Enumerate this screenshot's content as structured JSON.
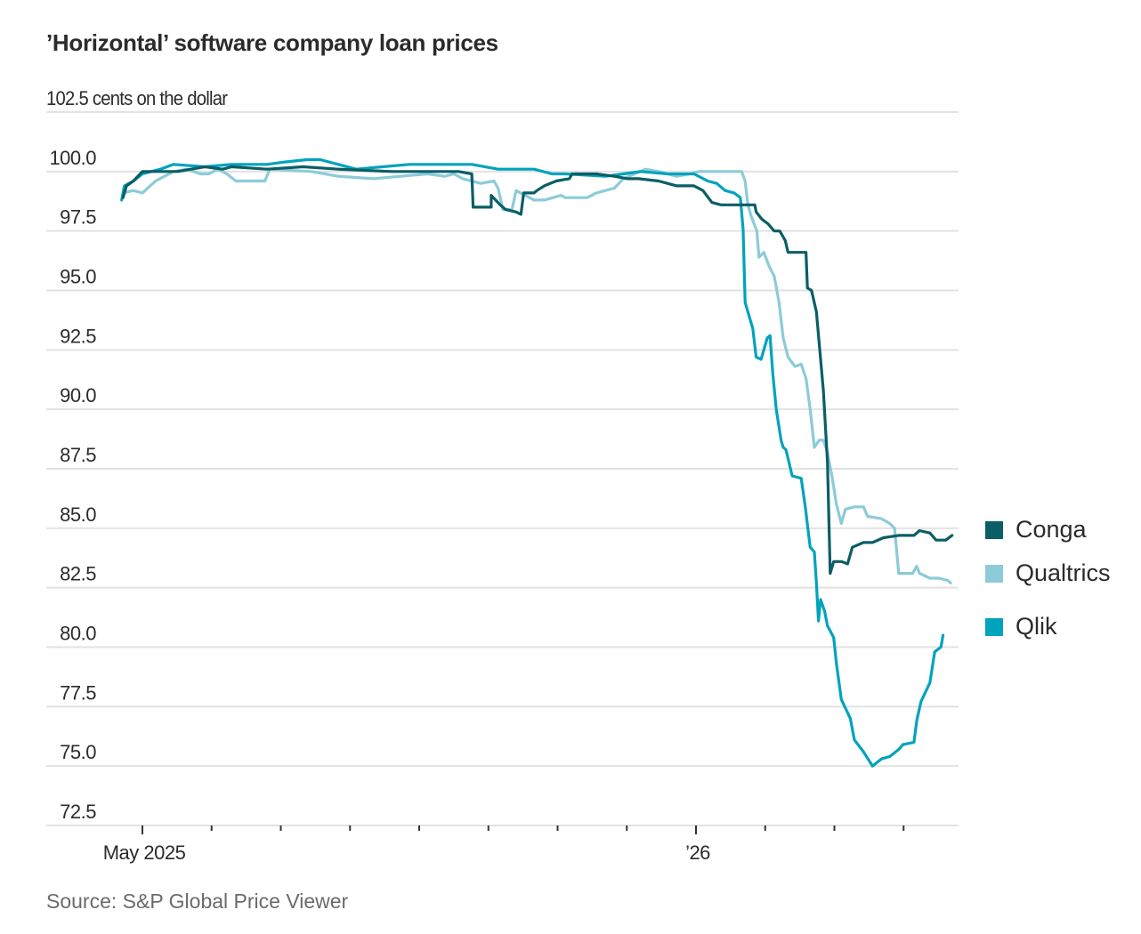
{
  "chart_data": {
    "type": "line",
    "title": "’Horizontal’ software company loan prices",
    "ylabel": "cents on the dollar",
    "xlabel": "",
    "source": "Source: S&P Global Price Viewer",
    "ylim": [
      72.5,
      102.5
    ],
    "y_ticks": [
      {
        "value": 102.5,
        "label": "102.5"
      },
      {
        "value": 100.0,
        "label": "100.0"
      },
      {
        "value": 97.5,
        "label": "97.5"
      },
      {
        "value": 95.0,
        "label": "95.0"
      },
      {
        "value": 92.5,
        "label": "92.5"
      },
      {
        "value": 90.0,
        "label": "90.0"
      },
      {
        "value": 87.5,
        "label": "87.5"
      },
      {
        "value": 85.0,
        "label": "85.0"
      },
      {
        "value": 82.5,
        "label": "82.5"
      },
      {
        "value": 80.0,
        "label": "80.0"
      },
      {
        "value": 77.5,
        "label": "77.5"
      },
      {
        "value": 75.0,
        "label": "75.0"
      },
      {
        "value": 72.5,
        "label": "72.5"
      }
    ],
    "x_unit": "months since May 1, 2025",
    "xlim": [
      -0.3,
      11.93
    ],
    "x_ticks": [
      {
        "value": 0,
        "label": "May 2025",
        "major": true
      },
      {
        "value": 1,
        "label": "",
        "major": false
      },
      {
        "value": 2,
        "label": "",
        "major": false
      },
      {
        "value": 3,
        "label": "",
        "major": false
      },
      {
        "value": 4,
        "label": "",
        "major": false
      },
      {
        "value": 5,
        "label": "",
        "major": false
      },
      {
        "value": 6,
        "label": "",
        "major": false
      },
      {
        "value": 7,
        "label": "",
        "major": false
      },
      {
        "value": 8,
        "label": "’26",
        "major": true
      },
      {
        "value": 9,
        "label": "",
        "major": false
      },
      {
        "value": 10,
        "label": "",
        "major": false
      },
      {
        "value": 11,
        "label": "",
        "major": false
      }
    ],
    "grid": true,
    "legend_position": "right",
    "series": [
      {
        "name": "Conga",
        "color": "#0b5e66",
        "points": [
          [
            -0.28,
            98.9
          ],
          [
            -0.23,
            99.4
          ],
          [
            -0.13,
            99.6
          ],
          [
            0.0,
            100.0
          ],
          [
            0.13,
            100.0
          ],
          [
            0.32,
            100.0
          ],
          [
            0.51,
            100.0
          ],
          [
            0.9,
            100.2
          ],
          [
            1.16,
            100.1
          ],
          [
            1.29,
            100.2
          ],
          [
            1.8,
            100.1
          ],
          [
            2.32,
            100.2
          ],
          [
            2.83,
            100.1
          ],
          [
            3.6,
            100.0
          ],
          [
            4.37,
            100.0
          ],
          [
            4.57,
            100.0
          ],
          [
            4.76,
            99.9
          ],
          [
            4.78,
            98.5
          ],
          [
            4.84,
            98.5
          ],
          [
            5.04,
            98.5
          ],
          [
            5.04,
            99.0
          ],
          [
            5.17,
            98.6
          ],
          [
            5.25,
            98.4
          ],
          [
            5.4,
            98.3
          ],
          [
            5.47,
            98.2
          ],
          [
            5.51,
            99.1
          ],
          [
            5.66,
            99.1
          ],
          [
            5.7,
            99.2
          ],
          [
            5.81,
            99.4
          ],
          [
            5.98,
            99.6
          ],
          [
            6.17,
            99.7
          ],
          [
            6.21,
            99.9
          ],
          [
            6.3,
            99.9
          ],
          [
            6.56,
            99.9
          ],
          [
            6.82,
            99.8
          ],
          [
            7.01,
            99.7
          ],
          [
            7.17,
            99.7
          ],
          [
            7.46,
            99.6
          ],
          [
            7.59,
            99.5
          ],
          [
            7.72,
            99.4
          ],
          [
            7.97,
            99.4
          ],
          [
            8.1,
            99.2
          ],
          [
            8.23,
            98.7
          ],
          [
            8.36,
            98.6
          ],
          [
            8.62,
            98.6
          ],
          [
            8.85,
            98.6
          ],
          [
            8.87,
            98.3
          ],
          [
            8.95,
            98.0
          ],
          [
            9.04,
            97.8
          ],
          [
            9.13,
            97.5
          ],
          [
            9.21,
            97.5
          ],
          [
            9.29,
            97.1
          ],
          [
            9.33,
            96.6
          ],
          [
            9.52,
            96.6
          ],
          [
            9.59,
            96.6
          ],
          [
            9.61,
            95.1
          ],
          [
            9.67,
            95.0
          ],
          [
            9.74,
            94.1
          ],
          [
            9.84,
            90.8
          ],
          [
            9.9,
            87.8
          ],
          [
            9.94,
            83.1
          ],
          [
            9.99,
            83.6
          ],
          [
            10.1,
            83.6
          ],
          [
            10.19,
            83.5
          ],
          [
            10.26,
            84.2
          ],
          [
            10.42,
            84.4
          ],
          [
            10.55,
            84.4
          ],
          [
            10.71,
            84.6
          ],
          [
            10.93,
            84.7
          ],
          [
            11.15,
            84.7
          ],
          [
            11.23,
            84.9
          ],
          [
            11.38,
            84.8
          ],
          [
            11.47,
            84.5
          ],
          [
            11.61,
            84.5
          ],
          [
            11.7,
            84.7
          ]
        ]
      },
      {
        "name": "Qualtrics",
        "color": "#8ccbd8",
        "points": [
          [
            -0.28,
            99.1
          ],
          [
            -0.13,
            99.2
          ],
          [
            0.0,
            99.1
          ],
          [
            0.19,
            99.6
          ],
          [
            0.45,
            100.0
          ],
          [
            0.64,
            100.1
          ],
          [
            0.84,
            99.9
          ],
          [
            0.96,
            99.9
          ],
          [
            1.09,
            100.1
          ],
          [
            1.22,
            99.9
          ],
          [
            1.35,
            99.6
          ],
          [
            1.77,
            99.6
          ],
          [
            1.84,
            100.1
          ],
          [
            2.44,
            100.0
          ],
          [
            2.83,
            99.8
          ],
          [
            3.34,
            99.7
          ],
          [
            3.73,
            99.8
          ],
          [
            4.12,
            99.9
          ],
          [
            4.37,
            99.8
          ],
          [
            4.5,
            99.9
          ],
          [
            4.63,
            99.7
          ],
          [
            4.89,
            99.5
          ],
          [
            5.08,
            99.6
          ],
          [
            5.14,
            99.3
          ],
          [
            5.21,
            98.4
          ],
          [
            5.34,
            98.4
          ],
          [
            5.4,
            99.2
          ],
          [
            5.53,
            99.0
          ],
          [
            5.66,
            98.8
          ],
          [
            5.81,
            98.8
          ],
          [
            6.05,
            99.0
          ],
          [
            6.11,
            98.9
          ],
          [
            6.43,
            98.9
          ],
          [
            6.56,
            99.1
          ],
          [
            6.82,
            99.3
          ],
          [
            6.95,
            99.7
          ],
          [
            7.27,
            100.1
          ],
          [
            7.46,
            100.0
          ],
          [
            7.72,
            99.8
          ],
          [
            7.91,
            99.9
          ],
          [
            8.04,
            100.0
          ],
          [
            8.1,
            100.0
          ],
          [
            8.36,
            100.0
          ],
          [
            8.66,
            100.0
          ],
          [
            8.71,
            99.6
          ],
          [
            8.75,
            98.6
          ],
          [
            8.8,
            98.1
          ],
          [
            8.88,
            97.5
          ],
          [
            8.91,
            96.4
          ],
          [
            8.98,
            96.6
          ],
          [
            9.06,
            96.0
          ],
          [
            9.13,
            95.6
          ],
          [
            9.2,
            94.5
          ],
          [
            9.26,
            93.0
          ],
          [
            9.33,
            92.2
          ],
          [
            9.43,
            91.8
          ],
          [
            9.52,
            91.9
          ],
          [
            9.59,
            91.3
          ],
          [
            9.65,
            90.0
          ],
          [
            9.71,
            88.4
          ],
          [
            9.78,
            88.7
          ],
          [
            9.84,
            88.7
          ],
          [
            9.9,
            88.2
          ],
          [
            9.97,
            87.1
          ],
          [
            10.03,
            86.0
          ],
          [
            10.1,
            85.2
          ],
          [
            10.16,
            85.8
          ],
          [
            10.29,
            85.9
          ],
          [
            10.42,
            85.9
          ],
          [
            10.48,
            85.5
          ],
          [
            10.68,
            85.4
          ],
          [
            10.8,
            85.2
          ],
          [
            10.87,
            85.0
          ],
          [
            10.93,
            83.1
          ],
          [
            11.13,
            83.1
          ],
          [
            11.19,
            83.4
          ],
          [
            11.23,
            83.1
          ],
          [
            11.38,
            82.9
          ],
          [
            11.51,
            82.9
          ],
          [
            11.64,
            82.8
          ],
          [
            11.68,
            82.7
          ]
        ]
      },
      {
        "name": "Qlik",
        "color": "#00a3bc",
        "points": [
          [
            -0.3,
            98.8
          ],
          [
            -0.26,
            99.4
          ],
          [
            -0.13,
            99.6
          ],
          [
            0.0,
            99.9
          ],
          [
            0.13,
            100.0
          ],
          [
            0.26,
            100.1
          ],
          [
            0.45,
            100.3
          ],
          [
            0.9,
            100.2
          ],
          [
            1.29,
            100.3
          ],
          [
            1.8,
            100.3
          ],
          [
            2.06,
            100.4
          ],
          [
            2.38,
            100.5
          ],
          [
            2.57,
            100.5
          ],
          [
            2.83,
            100.3
          ],
          [
            3.09,
            100.1
          ],
          [
            3.47,
            100.2
          ],
          [
            3.86,
            100.3
          ],
          [
            4.12,
            100.3
          ],
          [
            4.37,
            100.3
          ],
          [
            4.76,
            100.3
          ],
          [
            5.14,
            100.1
          ],
          [
            5.66,
            100.1
          ],
          [
            5.92,
            99.9
          ],
          [
            6.11,
            99.9
          ],
          [
            6.69,
            99.8
          ],
          [
            6.95,
            99.9
          ],
          [
            7.2,
            100.0
          ],
          [
            7.59,
            99.9
          ],
          [
            7.97,
            99.9
          ],
          [
            8.17,
            99.6
          ],
          [
            8.3,
            99.5
          ],
          [
            8.42,
            99.2
          ],
          [
            8.55,
            99.1
          ],
          [
            8.64,
            98.9
          ],
          [
            8.68,
            97.6
          ],
          [
            8.71,
            94.5
          ],
          [
            8.82,
            93.4
          ],
          [
            8.87,
            92.2
          ],
          [
            8.94,
            92.1
          ],
          [
            9.03,
            93.0
          ],
          [
            9.07,
            93.1
          ],
          [
            9.11,
            91.5
          ],
          [
            9.16,
            90.0
          ],
          [
            9.23,
            88.7
          ],
          [
            9.26,
            88.4
          ],
          [
            9.3,
            88.3
          ],
          [
            9.39,
            87.2
          ],
          [
            9.52,
            87.1
          ],
          [
            9.58,
            85.9
          ],
          [
            9.65,
            84.2
          ],
          [
            9.71,
            84.0
          ],
          [
            9.74,
            82.7
          ],
          [
            9.77,
            81.1
          ],
          [
            9.8,
            82.0
          ],
          [
            9.86,
            81.5
          ],
          [
            9.9,
            80.9
          ],
          [
            9.99,
            80.4
          ],
          [
            10.03,
            79.3
          ],
          [
            10.1,
            77.8
          ],
          [
            10.23,
            77.0
          ],
          [
            10.29,
            76.1
          ],
          [
            10.42,
            75.6
          ],
          [
            10.55,
            75.0
          ],
          [
            10.68,
            75.3
          ],
          [
            10.8,
            75.4
          ],
          [
            10.93,
            75.7
          ],
          [
            10.99,
            75.9
          ],
          [
            11.15,
            76.0
          ],
          [
            11.19,
            76.9
          ],
          [
            11.25,
            77.7
          ],
          [
            11.38,
            78.5
          ],
          [
            11.45,
            79.8
          ],
          [
            11.54,
            80.0
          ],
          [
            11.57,
            80.5
          ]
        ]
      }
    ]
  }
}
